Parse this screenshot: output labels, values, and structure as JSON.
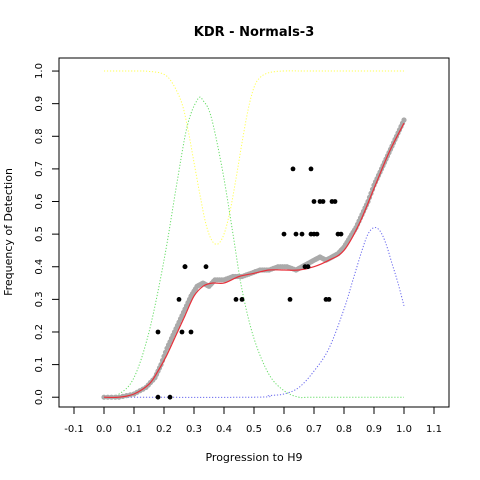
{
  "chart_data": {
    "type": "scatter",
    "title": "KDR - Normals-3",
    "xlabel": "Progression to H9",
    "ylabel": "Frequency of Detection",
    "xlim": [
      -0.15,
      1.15
    ],
    "ylim": [
      -0.03,
      1.04
    ],
    "x_ticks": [
      "-0.1",
      "0.0",
      "0.1",
      "0.2",
      "0.3",
      "0.4",
      "0.5",
      "0.6",
      "0.7",
      "0.8",
      "0.9",
      "1.0",
      "1.1"
    ],
    "y_ticks": [
      "0.0",
      "0.1",
      "0.2",
      "0.3",
      "0.4",
      "0.5",
      "0.6",
      "0.7",
      "0.8",
      "0.9",
      "1.0"
    ],
    "grid": false,
    "legend": "none",
    "series": [
      {
        "role": "observed points",
        "color": "#000000",
        "x": [
          0.18,
          0.18,
          0.22,
          0.25,
          0.26,
          0.27,
          0.27,
          0.29,
          0.34,
          0.44,
          0.46,
          0.6,
          0.62,
          0.63,
          0.64,
          0.66,
          0.67,
          0.68,
          0.69,
          0.69,
          0.7,
          0.7,
          0.71,
          0.72,
          0.73,
          0.74,
          0.75,
          0.76,
          0.77,
          0.78,
          0.79
        ],
        "y": [
          0.2,
          0.0,
          0.0,
          0.3,
          0.2,
          0.4,
          0.4,
          0.2,
          0.4,
          0.3,
          0.3,
          0.5,
          0.3,
          0.7,
          0.5,
          0.5,
          0.4,
          0.4,
          0.7,
          0.5,
          0.6,
          0.5,
          0.5,
          0.6,
          0.6,
          0.3,
          0.3,
          0.6,
          0.6,
          0.5,
          0.5
        ]
      },
      {
        "role": "smoothed points",
        "color": "#aaaaaa",
        "x": [
          0.0,
          0.05,
          0.1,
          0.14,
          0.17,
          0.19,
          0.21,
          0.23,
          0.25,
          0.27,
          0.29,
          0.31,
          0.33,
          0.35,
          0.37,
          0.4,
          0.43,
          0.46,
          0.49,
          0.52,
          0.55,
          0.58,
          0.61,
          0.64,
          0.66,
          0.68,
          0.7,
          0.72,
          0.74,
          0.76,
          0.78,
          0.8,
          0.82,
          0.84,
          0.86,
          0.88,
          0.9,
          0.92,
          0.94,
          0.96,
          0.98,
          1.0
        ],
        "y": [
          0.0,
          0.0,
          0.01,
          0.03,
          0.06,
          0.1,
          0.15,
          0.19,
          0.23,
          0.27,
          0.31,
          0.34,
          0.35,
          0.34,
          0.36,
          0.36,
          0.37,
          0.37,
          0.38,
          0.39,
          0.39,
          0.4,
          0.4,
          0.39,
          0.4,
          0.41,
          0.42,
          0.43,
          0.42,
          0.43,
          0.44,
          0.46,
          0.49,
          0.52,
          0.56,
          0.6,
          0.65,
          0.69,
          0.73,
          0.77,
          0.81,
          0.85
        ]
      },
      {
        "role": "fitted curve",
        "color": "#e8303a",
        "x": [
          0.0,
          0.05,
          0.1,
          0.15,
          0.18,
          0.21,
          0.24,
          0.27,
          0.3,
          0.33,
          0.36,
          0.4,
          0.45,
          0.5,
          0.55,
          0.6,
          0.65,
          0.7,
          0.75,
          0.8,
          0.85,
          0.9,
          0.95,
          1.0
        ],
        "y": [
          0.0,
          0.0,
          0.01,
          0.04,
          0.08,
          0.13,
          0.19,
          0.25,
          0.31,
          0.34,
          0.35,
          0.35,
          0.37,
          0.38,
          0.39,
          0.39,
          0.39,
          0.4,
          0.42,
          0.45,
          0.53,
          0.64,
          0.75,
          0.84
        ]
      },
      {
        "role": "yellow dotted curve",
        "color": "#ffff55",
        "x": [
          0.0,
          0.1,
          0.15,
          0.2,
          0.23,
          0.26,
          0.28,
          0.3,
          0.32,
          0.34,
          0.36,
          0.38,
          0.4,
          0.42,
          0.44,
          0.46,
          0.48,
          0.5,
          0.52,
          0.55,
          0.6,
          0.7,
          1.0
        ],
        "y": [
          1.0,
          1.0,
          0.999,
          0.99,
          0.96,
          0.9,
          0.82,
          0.72,
          0.62,
          0.53,
          0.48,
          0.47,
          0.5,
          0.57,
          0.67,
          0.78,
          0.88,
          0.95,
          0.98,
          0.995,
          1.0,
          1.0,
          1.0
        ]
      },
      {
        "role": "green dotted curve",
        "color": "#66dd66",
        "x": [
          0.0,
          0.05,
          0.1,
          0.15,
          0.2,
          0.24,
          0.27,
          0.29,
          0.31,
          0.32,
          0.33,
          0.35,
          0.37,
          0.4,
          0.43,
          0.46,
          0.5,
          0.55,
          0.6,
          0.65,
          0.7,
          1.0
        ],
        "y": [
          0.0,
          0.01,
          0.06,
          0.2,
          0.42,
          0.64,
          0.8,
          0.87,
          0.91,
          0.92,
          0.91,
          0.88,
          0.81,
          0.67,
          0.5,
          0.33,
          0.18,
          0.07,
          0.02,
          0.0,
          0.0,
          0.0
        ]
      },
      {
        "role": "blue dotted curve",
        "color": "#6666ee",
        "x": [
          0.0,
          0.5,
          0.55,
          0.6,
          0.65,
          0.7,
          0.75,
          0.8,
          0.83,
          0.86,
          0.88,
          0.9,
          0.92,
          0.94,
          0.96,
          0.98,
          1.0
        ],
        "y": [
          0.0,
          0.0,
          0.005,
          0.01,
          0.03,
          0.08,
          0.15,
          0.27,
          0.36,
          0.45,
          0.5,
          0.52,
          0.51,
          0.47,
          0.41,
          0.35,
          0.28
        ]
      }
    ]
  }
}
